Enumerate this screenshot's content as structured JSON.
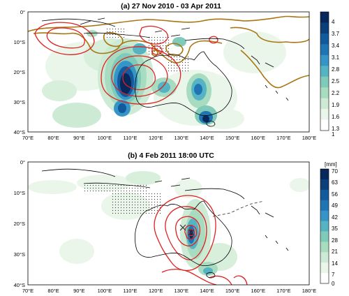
{
  "panels": [
    {
      "title": "(a) 27 Nov 2010 - 03 Apr 2011",
      "colorbar": {
        "unit": "",
        "labels": [
          "4",
          "3.7",
          "3.4",
          "3.1",
          "2.8",
          "2.5",
          "2.2",
          "1.9",
          "1.6",
          "1.3",
          "1"
        ]
      }
    },
    {
      "title": "(b) 4 Feb 2011 18:00 UTC",
      "colorbar": {
        "unit": "[mm]",
        "labels": [
          "70",
          "63",
          "56",
          "49",
          "42",
          "35",
          "28",
          "21",
          "14",
          "7",
          "0"
        ]
      }
    }
  ],
  "axes": {
    "lon_labels": [
      "70°E",
      "80°E",
      "90°E",
      "100°E",
      "110°E",
      "120°E",
      "130°E",
      "140°E",
      "150°E",
      "160°E",
      "170°E",
      "180°E"
    ],
    "lat_labels": [
      "0°",
      "10°S",
      "20°S",
      "30°S",
      "40°S"
    ]
  },
  "colors": {
    "fill_scale": [
      "#ffffff",
      "#eaf6ea",
      "#cdebd4",
      "#a8dcc0",
      "#7fcab9",
      "#56b3c4",
      "#3595c7",
      "#1f75b4",
      "#135a9d",
      "#0b3f7a",
      "#08275a"
    ],
    "contour_red": "#e02020",
    "contour_brown": "#a87510",
    "coastline": "#000000",
    "stipple": "#333333"
  }
}
